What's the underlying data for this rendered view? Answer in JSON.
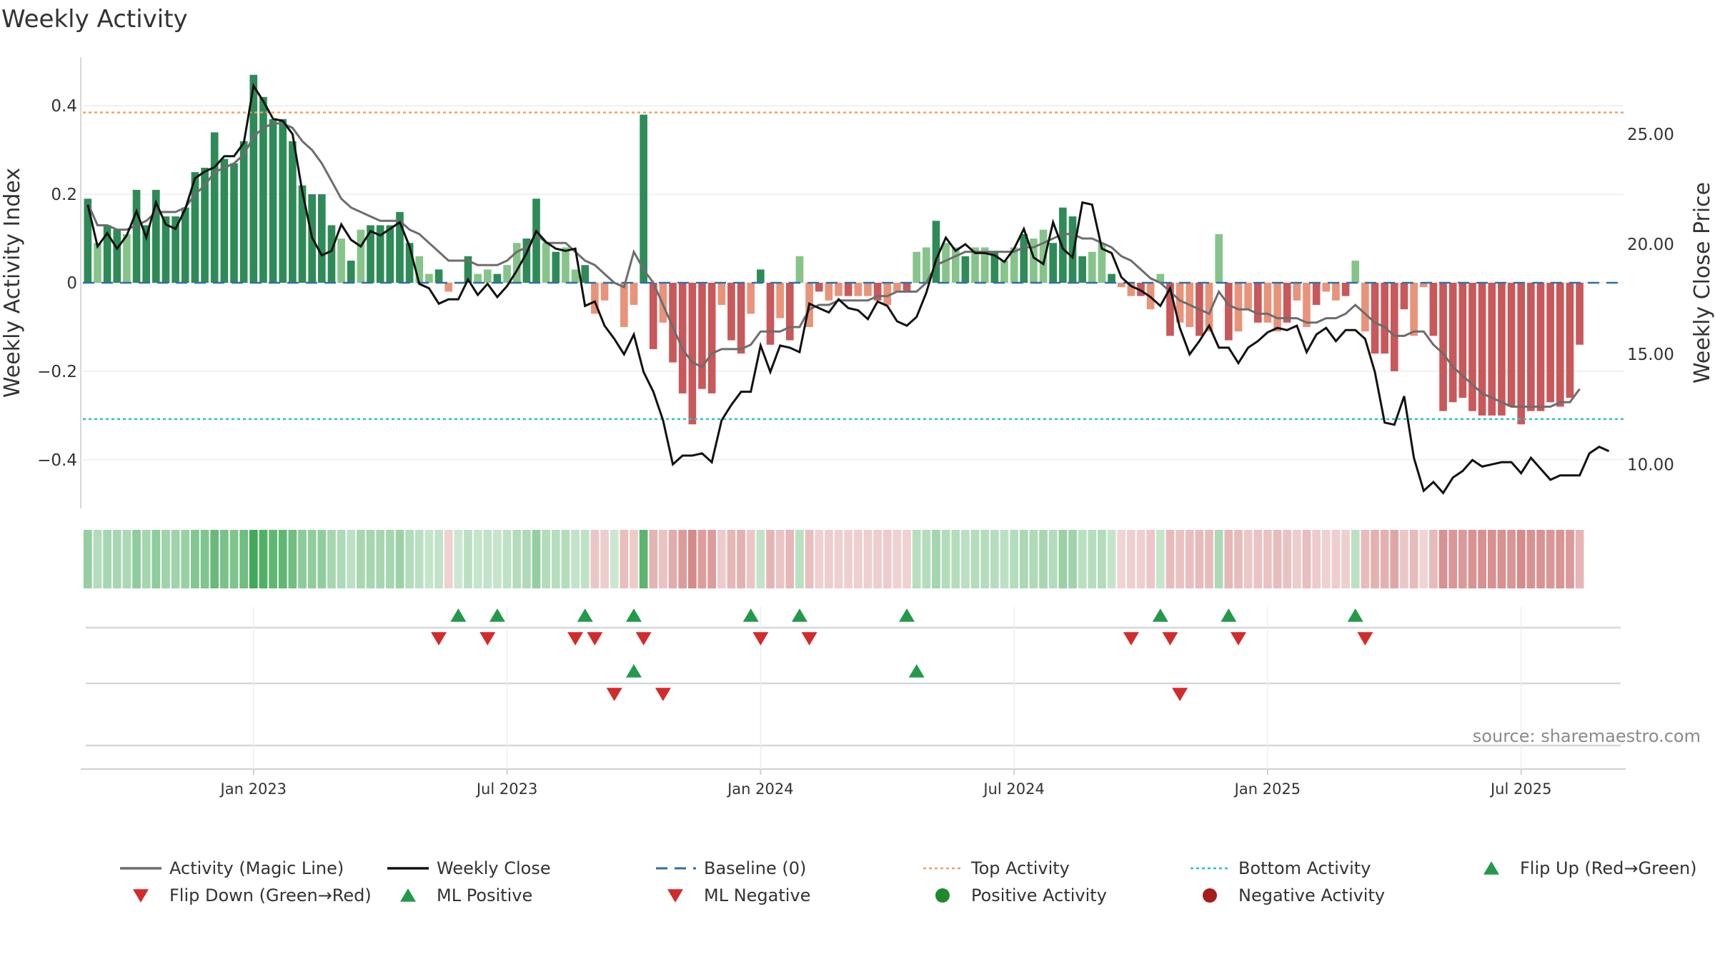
{
  "chart_data": {
    "type": "bar",
    "title": "Weekly Activity",
    "ylabel": "Weekly Activity Index",
    "y2label": "Weekly Close Price",
    "ylim": [
      -0.51,
      0.51
    ],
    "y2lim": [
      8.0,
      28.5
    ],
    "yticks": [
      {
        "v": 0.4,
        "label": "0.4"
      },
      {
        "v": 0.2,
        "label": "0.2"
      },
      {
        "v": 0,
        "label": "0"
      },
      {
        "v": -0.2,
        "label": "−0.2"
      },
      {
        "v": -0.4,
        "label": "−0.4"
      }
    ],
    "y2ticks": [
      {
        "v": 25,
        "label": "25.00"
      },
      {
        "v": 20,
        "label": "20.00"
      },
      {
        "v": 15,
        "label": "15.00"
      },
      {
        "v": 10,
        "label": "10.00"
      }
    ],
    "xticks": [
      {
        "week": 17,
        "label": "Jan 2023"
      },
      {
        "week": 43,
        "label": "Jul 2023"
      },
      {
        "week": 69,
        "label": "Jan 2024"
      },
      {
        "week": 95,
        "label": "Jul 2024"
      },
      {
        "week": 121,
        "label": "Jan 2025"
      },
      {
        "week": 147,
        "label": "Jul 2025"
      }
    ],
    "weeks": 158,
    "top_activity": 0.385,
    "bottom_activity": -0.308,
    "activity_index": [
      0.19,
      0.09,
      0.13,
      0.12,
      0.11,
      0.21,
      0.13,
      0.21,
      0.15,
      0.15,
      0.17,
      0.25,
      0.26,
      0.34,
      0.28,
      0.27,
      0.32,
      0.47,
      0.42,
      0.37,
      0.37,
      0.32,
      0.22,
      0.2,
      0.2,
      0.13,
      0.1,
      0.05,
      0.12,
      0.13,
      0.13,
      0.13,
      0.16,
      0.09,
      0.06,
      0.02,
      0.03,
      -0.02,
      0.0,
      0.06,
      0.02,
      0.03,
      0.02,
      0.04,
      0.09,
      0.1,
      0.19,
      0.09,
      0.07,
      0.08,
      0.03,
      0.04,
      -0.07,
      -0.04,
      0.0,
      -0.1,
      -0.05,
      0.38,
      -0.15,
      -0.09,
      -0.18,
      -0.25,
      -0.32,
      -0.24,
      -0.25,
      -0.05,
      -0.13,
      -0.16,
      -0.07,
      0.03,
      -0.14,
      -0.08,
      -0.13,
      0.06,
      -0.1,
      -0.02,
      -0.04,
      -0.03,
      -0.03,
      -0.03,
      -0.03,
      -0.04,
      -0.05,
      -0.02,
      -0.02,
      0.07,
      0.08,
      0.14,
      0.09,
      0.08,
      0.06,
      0.08,
      0.08,
      0.07,
      0.05,
      0.08,
      0.11,
      0.1,
      0.12,
      0.09,
      0.17,
      0.15,
      0.06,
      0.07,
      0.09,
      0.02,
      -0.01,
      -0.03,
      -0.03,
      -0.06,
      0.02,
      -0.12,
      -0.09,
      -0.1,
      -0.12,
      -0.11,
      0.11,
      -0.13,
      -0.11,
      -0.06,
      -0.09,
      -0.09,
      -0.11,
      -0.09,
      -0.04,
      -0.1,
      -0.05,
      -0.02,
      -0.04,
      -0.03,
      0.05,
      -0.11,
      -0.16,
      -0.16,
      -0.2,
      -0.06,
      -0.12,
      -0.01,
      -0.12,
      -0.29,
      -0.27,
      -0.26,
      -0.29,
      -0.3,
      -0.3,
      -0.3,
      -0.28,
      -0.32,
      -0.29,
      -0.29,
      -0.27,
      -0.28,
      -0.26,
      -0.14
    ],
    "magic_line": [
      0.18,
      0.13,
      0.13,
      0.12,
      0.12,
      0.13,
      0.14,
      0.16,
      0.16,
      0.16,
      0.17,
      0.2,
      0.22,
      0.25,
      0.26,
      0.27,
      0.29,
      0.33,
      0.35,
      0.36,
      0.36,
      0.35,
      0.32,
      0.3,
      0.27,
      0.23,
      0.19,
      0.17,
      0.16,
      0.15,
      0.14,
      0.14,
      0.14,
      0.12,
      0.11,
      0.09,
      0.07,
      0.05,
      0.05,
      0.05,
      0.04,
      0.04,
      0.04,
      0.05,
      0.07,
      0.08,
      0.11,
      0.09,
      0.09,
      0.09,
      0.07,
      0.05,
      0.04,
      0.02,
      0.0,
      -0.01,
      0.07,
      0.03,
      0.0,
      -0.05,
      -0.1,
      -0.15,
      -0.18,
      -0.19,
      -0.16,
      -0.15,
      -0.15,
      -0.15,
      -0.14,
      -0.11,
      -0.11,
      -0.11,
      -0.1,
      -0.1,
      -0.06,
      -0.05,
      -0.05,
      -0.04,
      -0.04,
      -0.04,
      -0.04,
      -0.03,
      -0.03,
      -0.02,
      -0.02,
      -0.02,
      0.0,
      0.04,
      0.05,
      0.06,
      0.07,
      0.07,
      0.07,
      0.07,
      0.07,
      0.07,
      0.08,
      0.08,
      0.09,
      0.1,
      0.11,
      0.11,
      0.1,
      0.1,
      0.09,
      0.08,
      0.06,
      0.05,
      0.03,
      0.01,
      0.0,
      -0.02,
      -0.04,
      -0.05,
      -0.06,
      -0.07,
      -0.02,
      -0.05,
      -0.06,
      -0.06,
      -0.07,
      -0.07,
      -0.08,
      -0.08,
      -0.08,
      -0.09,
      -0.09,
      -0.08,
      -0.08,
      -0.07,
      -0.05,
      -0.07,
      -0.09,
      -0.1,
      -0.12,
      -0.12,
      -0.11,
      -0.11,
      -0.14,
      -0.16,
      -0.19,
      -0.21,
      -0.23,
      -0.25,
      -0.26,
      -0.27,
      -0.28,
      -0.28,
      -0.28,
      -0.28,
      -0.28,
      -0.27,
      -0.27,
      -0.24
    ],
    "weekly_close": [
      21.8,
      19.9,
      20.5,
      19.8,
      20.4,
      21.5,
      20.3,
      21.9,
      20.9,
      20.7,
      21.6,
      23.0,
      23.3,
      23.5,
      24.0,
      24.0,
      24.6,
      27.2,
      26.5,
      25.7,
      25.6,
      25.0,
      22.4,
      20.3,
      19.5,
      19.7,
      20.9,
      20.2,
      19.9,
      20.6,
      20.4,
      20.7,
      21.0,
      19.9,
      18.2,
      18.0,
      17.3,
      17.5,
      17.5,
      18.4,
      17.7,
      18.2,
      17.6,
      18.1,
      18.8,
      19.6,
      20.6,
      20.1,
      19.8,
      19.7,
      19.8,
      17.2,
      17.4,
      16.3,
      15.7,
      15.0,
      15.9,
      14.2,
      13.3,
      12.0,
      10.0,
      10.4,
      10.4,
      10.5,
      10.1,
      12.0,
      12.7,
      13.3,
      13.3,
      15.4,
      14.2,
      15.4,
      15.3,
      15.1,
      17.3,
      17.1,
      16.9,
      17.5,
      17.1,
      17.0,
      16.6,
      17.4,
      17.2,
      16.5,
      16.3,
      16.7,
      17.8,
      19.3,
      20.3,
      19.7,
      20.0,
      19.6,
      19.6,
      19.5,
      19.2,
      19.8,
      20.7,
      19.4,
      19.1,
      21.0,
      19.8,
      19.4,
      21.9,
      21.8,
      19.8,
      19.6,
      18.5,
      18.1,
      17.9,
      17.6,
      17.2,
      18.0,
      16.2,
      15.0,
      15.6,
      16.3,
      15.3,
      15.3,
      14.6,
      15.3,
      15.6,
      16.0,
      16.2,
      16.1,
      16.3,
      15.1,
      15.9,
      16.2,
      15.6,
      16.1,
      16.1,
      15.7,
      14.2,
      11.9,
      11.8,
      13.1,
      10.3,
      8.8,
      9.2,
      8.7,
      9.4,
      9.7,
      10.2,
      9.9,
      10.0,
      10.1,
      10.1,
      9.6,
      10.3,
      9.8,
      9.3,
      9.5,
      9.5,
      9.5,
      10.5,
      10.8,
      10.6
    ],
    "flip_up_weeks": [
      38,
      42,
      51,
      56,
      68,
      73,
      84,
      110,
      117,
      130
    ],
    "flip_down_weeks": [
      36,
      41,
      50,
      52,
      57,
      69,
      74,
      107,
      111,
      118,
      131
    ],
    "ml_positive_weeks": [
      56,
      85
    ],
    "ml_negative_weeks": [
      54,
      59,
      112
    ],
    "legend": [
      {
        "label": "Activity (Magic Line)",
        "kind": "line",
        "color": "#6d6d6d"
      },
      {
        "label": "Weekly Close",
        "kind": "line",
        "color": "#111111"
      },
      {
        "label": "Baseline (0)",
        "kind": "dash",
        "color": "#2f6ea8"
      },
      {
        "label": "Top Activity",
        "kind": "dot",
        "color": "#f0a060"
      },
      {
        "label": "Bottom Activity",
        "kind": "dot",
        "color": "#2bc0cf"
      },
      {
        "label": "Flip Up (Red→Green)",
        "kind": "tri-up",
        "color": "#23994a"
      },
      {
        "label": "Flip Down (Green→Red)",
        "kind": "tri-down",
        "color": "#d32a2a"
      },
      {
        "label": "ML Positive",
        "kind": "tri-up",
        "color": "#23994a"
      },
      {
        "label": "ML Negative",
        "kind": "tri-down",
        "color": "#d32a2a"
      },
      {
        "label": "Positive Activity",
        "kind": "circle",
        "color": "#1f8a2a"
      },
      {
        "label": "Negative Activity",
        "kind": "circle",
        "color": "#a51d1d"
      }
    ],
    "source": "source: sharemaestro.com"
  }
}
